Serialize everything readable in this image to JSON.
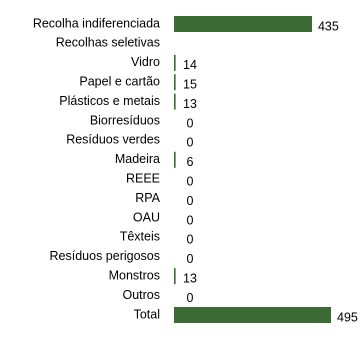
{
  "chart_data": {
    "type": "bar",
    "orientation": "horizontal",
    "categories": [
      "Recolha indiferenciada",
      "Recolhas seletivas",
      "Vidro",
      "Papel e cartão",
      "Plásticos e metais",
      "Biorresíduos",
      "Resíduos verdes",
      "Madeira",
      "REEE",
      "RPA",
      "OAU",
      "Têxteis",
      "Resíduos perigosos",
      "Monstros",
      "Outros",
      "Total"
    ],
    "values": [
      435,
      null,
      14,
      15,
      13,
      0,
      0,
      6,
      0,
      0,
      0,
      0,
      0,
      13,
      0,
      495
    ],
    "value_labels": [
      "435",
      "",
      "14",
      "15",
      "13",
      "0",
      "0",
      "6",
      "0",
      "0",
      "0",
      "0",
      "0",
      "13",
      "0",
      "495"
    ],
    "bar_color": "#3b6a34",
    "xlim": [
      0,
      495
    ],
    "grid": false,
    "legend": "none",
    "title": "",
    "xlabel": "",
    "ylabel": ""
  }
}
